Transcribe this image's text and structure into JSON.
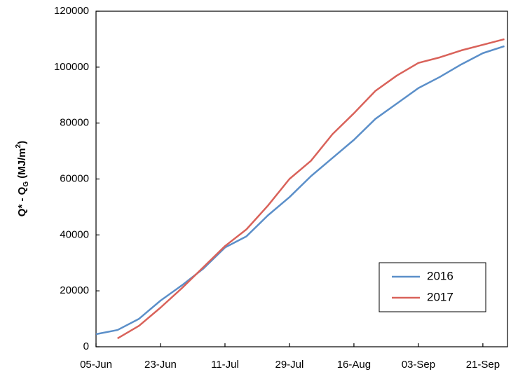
{
  "chart_data": {
    "type": "line",
    "y_label": [
      "Q* - Q",
      "G",
      " (MJ/m",
      "2",
      ")"
    ],
    "x": [
      "05-Jun",
      null,
      null,
      "23-Jun",
      null,
      null,
      "11-Jul",
      null,
      null,
      "29-Jul",
      null,
      null,
      "16-Aug",
      null,
      null,
      "03-Sep",
      null,
      null,
      "21-Sep",
      null
    ],
    "series": [
      {
        "name": "2016",
        "color": "#5b8fc9",
        "values": [
          4500,
          6000,
          10000,
          16500,
          22000,
          28000,
          35500,
          39500,
          47000,
          53500,
          61000,
          67500,
          74000,
          81500,
          87000,
          92500,
          96500,
          101000,
          105000,
          107500
        ]
      },
      {
        "name": "2017",
        "color": "#d9625a",
        "values": [
          null,
          3000,
          7500,
          14000,
          21000,
          28500,
          36000,
          42000,
          50500,
          60000,
          66500,
          76000,
          83500,
          91500,
          97000,
          101500,
          103500,
          106000,
          108000,
          110000
        ]
      }
    ],
    "ylim": [
      0,
      120000
    ],
    "yticks": [
      0,
      20000,
      40000,
      60000,
      80000,
      100000,
      120000
    ],
    "grid": false,
    "legend": "lower right"
  }
}
